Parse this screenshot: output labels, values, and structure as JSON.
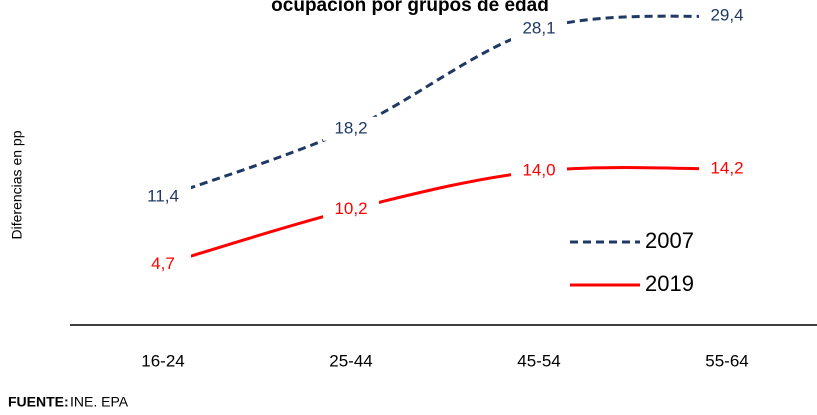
{
  "chart_data": {
    "type": "line",
    "title": "ocupación por grupos de edad",
    "y_label": "Diferencias en pp",
    "categories": [
      "16-24",
      "25-44",
      "45-54",
      "55-64"
    ],
    "series": [
      {
        "name": "2007",
        "color": "#1f3864",
        "dashed": true,
        "values": [
          11.4,
          18.2,
          28.1,
          29.4
        ],
        "value_labels": [
          "11,4",
          "18,2",
          "28,1",
          "29,4"
        ]
      },
      {
        "name": "2019",
        "color": "#ff0000",
        "dashed": false,
        "values": [
          4.7,
          10.2,
          14.0,
          14.2
        ],
        "value_labels": [
          "4,7",
          "10,2",
          "14,0",
          "14,2"
        ]
      }
    ],
    "ylim": [
      0,
      30
    ],
    "legend": "lower right",
    "source_label": "FUENTE:",
    "source": "INE. EPA"
  }
}
